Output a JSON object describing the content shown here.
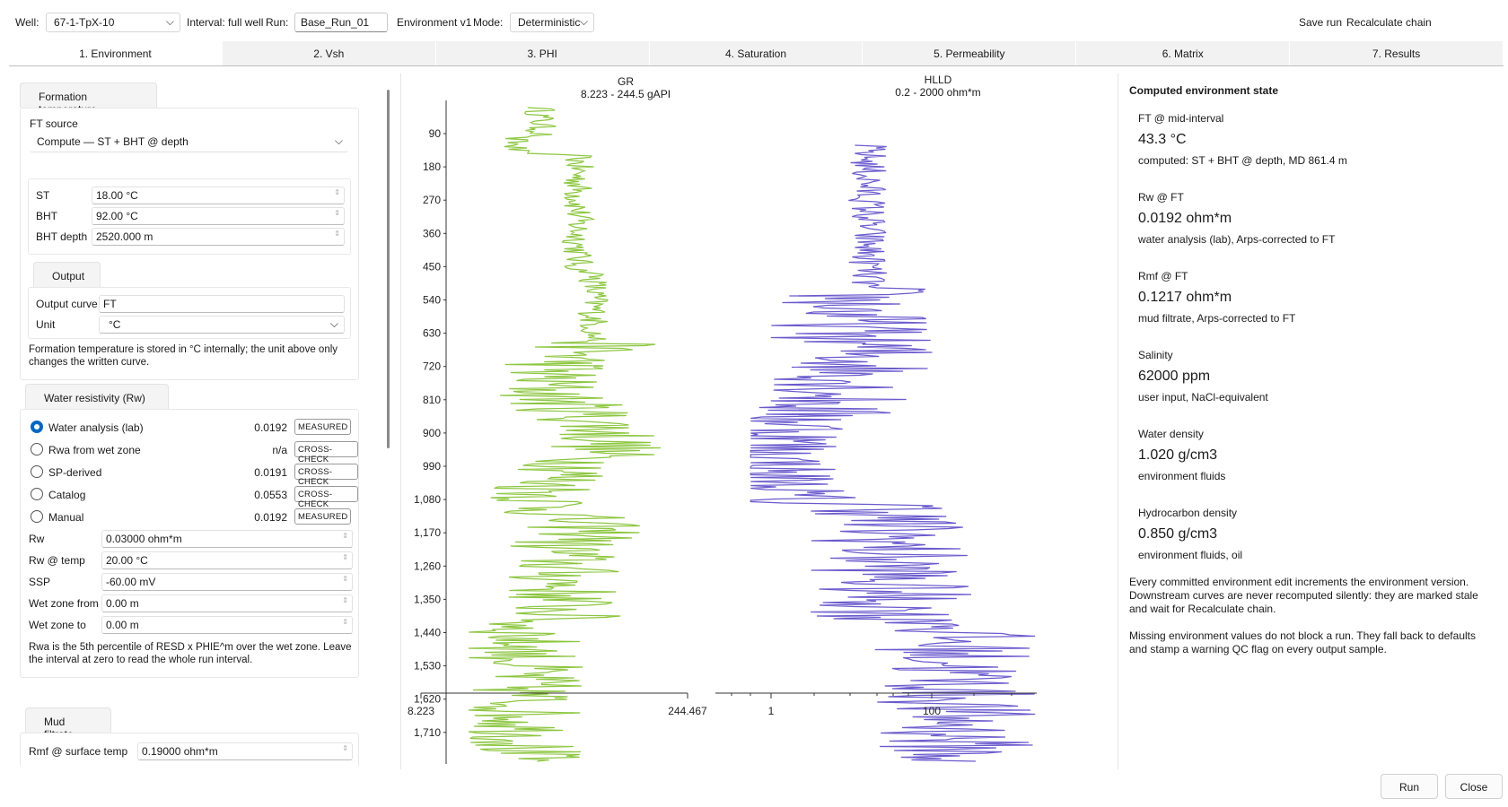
{
  "toolbar": {
    "well_label": "Well:",
    "well_value": "67-1-TpX-10",
    "interval": "Interval: full well",
    "run_label": "Run:",
    "run_value": "Base_Run_01",
    "env_version": "Environment v1",
    "mode_label": "Mode:",
    "mode_value": "Deterministic",
    "save_run": "Save run",
    "recalc_chain": "Recalculate chain"
  },
  "tabs": [
    {
      "label": "1. Environment",
      "active": true
    },
    {
      "label": "2. Vsh"
    },
    {
      "label": "3. PHI"
    },
    {
      "label": "4. Saturation"
    },
    {
      "label": "5. Permeability"
    },
    {
      "label": "6. Matrix"
    },
    {
      "label": "7. Results"
    }
  ],
  "formation_temp": {
    "title": "Formation temperature",
    "ft_source_label": "FT source",
    "ft_source_value": "Compute — ST + BHT @ depth",
    "st_label": "ST",
    "st_value": "18.00 °C",
    "bht_label": "BHT",
    "bht_value": "92.00 °C",
    "bht_depth_label": "BHT depth",
    "bht_depth_value": "2520.000 m",
    "output_title": "Output",
    "output_curve_label": "Output curve",
    "output_curve_value": "FT",
    "unit_label": "Unit",
    "unit_value": "°C",
    "note": "Formation temperature is stored in °C internally; the unit above only changes the written curve."
  },
  "water_res": {
    "title": "Water resistivity (Rw)",
    "options": [
      {
        "label": "Water analysis (lab)",
        "value": "0.0192",
        "badge": "MEASURED",
        "selected": true
      },
      {
        "label": "Rwa from wet zone",
        "value": "n/a",
        "badge": "CROSS-CHECK"
      },
      {
        "label": "SP-derived",
        "value": "0.0191",
        "badge": "CROSS-CHECK"
      },
      {
        "label": "Catalog",
        "value": "0.0553",
        "badge": "CROSS-CHECK"
      },
      {
        "label": "Manual",
        "value": "0.0192",
        "badge": "MEASURED"
      }
    ],
    "rw_label": "Rw",
    "rw_value": "0.03000 ohm*m",
    "rw_temp_label": "Rw @ temp",
    "rw_temp_value": "20.00 °C",
    "ssp_label": "SSP",
    "ssp_value": "-60.00 mV",
    "wet_from_label": "Wet zone from",
    "wet_from_value": "0.00 m",
    "wet_to_label": "Wet zone to",
    "wet_to_value": "0.00 m",
    "note": "Rwa is the 5th percentile of RESD x PHIE^m over the wet zone. Leave the interval at zero to read the whole run interval."
  },
  "mud_filtrate": {
    "title": "Mud filtrate",
    "rmf_label": "Rmf @ surface temp",
    "rmf_value": "0.19000 ohm*m"
  },
  "tracks": {
    "gr_name": "GR",
    "gr_range": "8.223 - 244.5 gAPI",
    "gr_min_tick": "8.223",
    "gr_max_tick": "244.467",
    "hlld_name": "HLLD",
    "hlld_range": "0.2 - 2000 ohm*m",
    "hlld_tick1": "1",
    "hlld_tick2": "100",
    "gr_color": "#8cc63f",
    "hlld_color": "#6a5acd",
    "depth_ticks": [
      "90",
      "180",
      "270",
      "360",
      "450",
      "540",
      "630",
      "720",
      "810",
      "900",
      "990",
      "1,080",
      "1,170",
      "1,260",
      "1,350",
      "1,440",
      "1,530",
      "1,620",
      "1,710"
    ]
  },
  "computed": {
    "title": "Computed environment state",
    "items": [
      {
        "label": "FT @ mid-interval",
        "value": "43.3 °C",
        "sub": "computed: ST + BHT @ depth, MD 861.4 m"
      },
      {
        "label": "Rw @ FT",
        "value": "0.0192 ohm*m",
        "sub": "water analysis (lab), Arps-corrected to FT"
      },
      {
        "label": "Rmf @ FT",
        "value": "0.1217 ohm*m",
        "sub": "mud filtrate, Arps-corrected to FT"
      },
      {
        "label": "Salinity",
        "value": "62000 ppm",
        "sub": "user input, NaCl-equivalent"
      },
      {
        "label": "Water density",
        "value": "1.020 g/cm3",
        "sub": "environment fluids"
      },
      {
        "label": "Hydrocarbon density",
        "value": "0.850 g/cm3",
        "sub": "environment fluids, oil"
      }
    ],
    "note1": "Every committed environment edit increments the environment version. Downstream curves are never recomputed silently: they are marked stale and wait for Recalculate chain.",
    "note2": "Missing environment values do not block a run. They fall back to defaults and stamp a warning QC flag on every output sample."
  },
  "footer": {
    "run": "Run",
    "close": "Close"
  }
}
